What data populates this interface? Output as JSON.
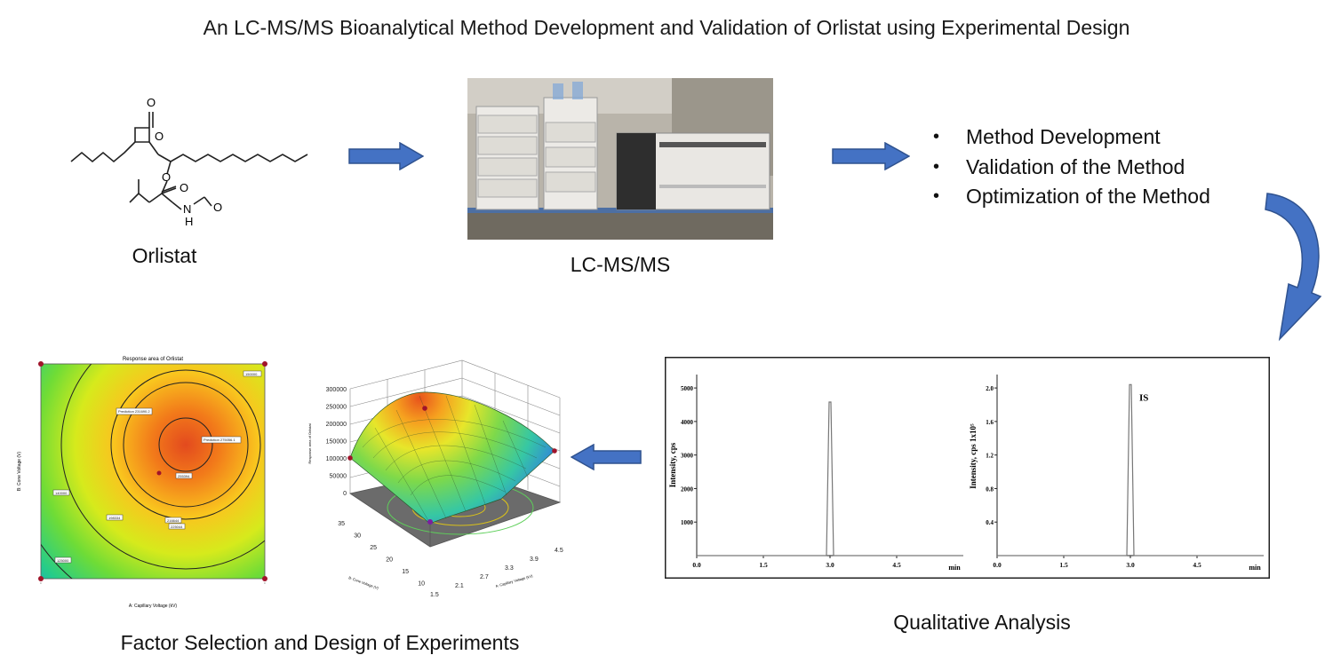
{
  "title": "An LC-MS/MS Bioanalytical Method Development and Validation of Orlistat using Experimental Design",
  "captions": {
    "orlistat": "Orlistat",
    "lcms": "LC-MS/MS",
    "qualitative": "Qualitative Analysis",
    "factor": "Factor Selection and Design of Experiments"
  },
  "bullets": [
    "Method Development",
    "Validation of the Method",
    "Optimization of the Method"
  ],
  "structure_labels": {
    "o1": "O",
    "o2": "O",
    "o3": "O",
    "o4": "O",
    "o5": "O",
    "n": "N",
    "h": "H"
  },
  "chromatogram": {
    "left": {
      "ylabel": "Intensity, cps",
      "yticks": [
        "5000",
        "4000",
        "3000",
        "2000",
        "1000"
      ],
      "xticks": [
        "0.0",
        "1.5",
        "3.0",
        "4.5"
      ],
      "xunit": "min",
      "peak_time": 3.0,
      "peak_value": 4580
    },
    "right": {
      "ylabel": "Intensity, cps 1x10⁵",
      "yticks": [
        "2.0",
        "1.6",
        "1.2",
        "0.8",
        "0.4"
      ],
      "xticks": [
        "0.0",
        "1.5",
        "3.0",
        "4.5"
      ],
      "xunit": "min",
      "peak_label": "IS",
      "peak_time": 3.0,
      "peak_value": 2.04
    }
  },
  "contour": {
    "title": "Response area of Orlistat",
    "xlabel": "A: Capillary Voltage (kV)",
    "ylabel": "B: Cone Voltage (V)",
    "labels": [
      "Prediction 275056.1",
      "Prediction 231690.2",
      "255394",
      "216644",
      "225044",
      "198334",
      "150000",
      "140000",
      "125000"
    ]
  },
  "surface": {
    "zlabel": "Response area of Orlistat",
    "zticks": [
      "300000",
      "250000",
      "200000",
      "150000",
      "100000",
      "50000",
      "0"
    ],
    "ylabel": "B: Cone Voltage (V)",
    "yticks": [
      "35",
      "30",
      "25",
      "20",
      "15",
      "10"
    ],
    "xlabel": "A: Capillary Voltage (kV)",
    "xticks": [
      "1.5",
      "2.1",
      "2.7",
      "3.3",
      "3.9",
      "4.5"
    ]
  },
  "colors": {
    "arrow": "#4472c4",
    "arrow_edge": "#2f528f"
  },
  "icons": [
    "right-arrow-icon",
    "curved-arrow-icon",
    "left-arrow-icon",
    "bullet-icon"
  ]
}
